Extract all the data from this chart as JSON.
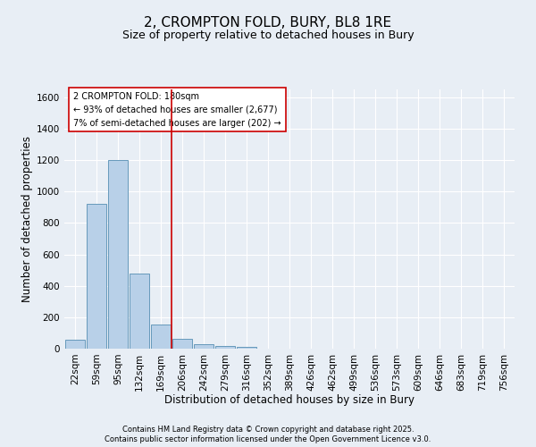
{
  "title": "2, CROMPTON FOLD, BURY, BL8 1RE",
  "subtitle": "Size of property relative to detached houses in Bury",
  "xlabel": "Distribution of detached houses by size in Bury",
  "ylabel": "Number of detached properties",
  "bar_labels": [
    "22sqm",
    "59sqm",
    "95sqm",
    "132sqm",
    "169sqm",
    "206sqm",
    "242sqm",
    "279sqm",
    "316sqm",
    "352sqm",
    "389sqm",
    "426sqm",
    "462sqm",
    "499sqm",
    "536sqm",
    "573sqm",
    "609sqm",
    "646sqm",
    "683sqm",
    "719sqm",
    "756sqm"
  ],
  "bar_values": [
    55,
    920,
    1200,
    480,
    155,
    60,
    30,
    15,
    10,
    0,
    0,
    0,
    0,
    0,
    0,
    0,
    0,
    0,
    0,
    0,
    0
  ],
  "bar_color": "#b8d0e8",
  "bar_edge_color": "#6699bb",
  "vline_x": 4.5,
  "vline_color": "#cc0000",
  "ylim": [
    0,
    1650
  ],
  "yticks": [
    0,
    200,
    400,
    600,
    800,
    1000,
    1200,
    1400,
    1600
  ],
  "annotation_title": "2 CROMPTON FOLD: 180sqm",
  "annotation_line1": "← 93% of detached houses are smaller (2,677)",
  "annotation_line2": "7% of semi-detached houses are larger (202) →",
  "annotation_box_color": "#ffffff",
  "annotation_box_edge": "#cc0000",
  "footer1": "Contains HM Land Registry data © Crown copyright and database right 2025.",
  "footer2": "Contains public sector information licensed under the Open Government Licence v3.0.",
  "background_color": "#e8eef5",
  "plot_background": "#e8eef5",
  "grid_color": "#ffffff",
  "title_fontsize": 11,
  "subtitle_fontsize": 9,
  "axis_label_fontsize": 8.5,
  "tick_fontsize": 7.5,
  "footer_fontsize": 6
}
